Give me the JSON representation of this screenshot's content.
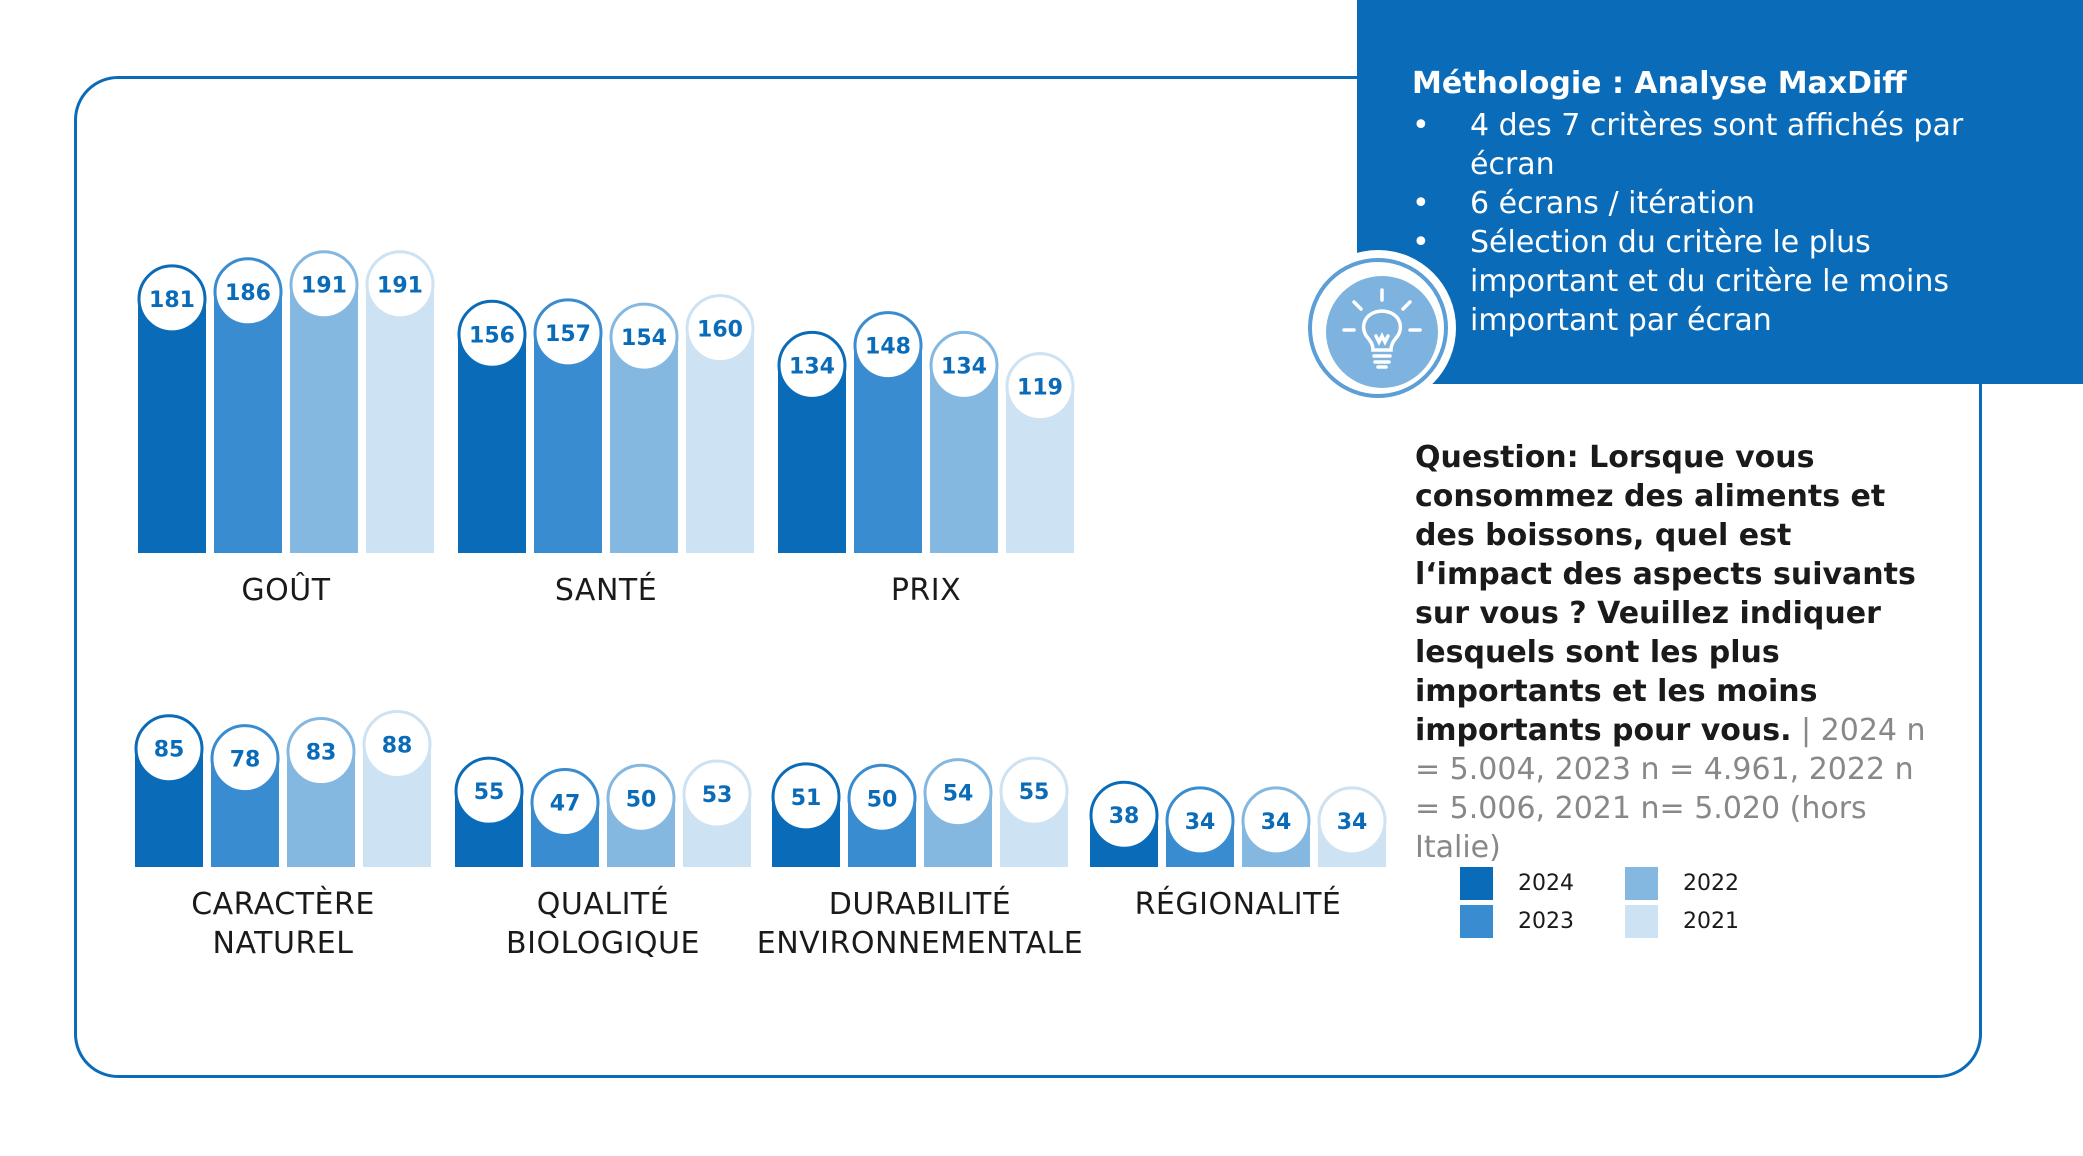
{
  "chart_data": {
    "type": "bar",
    "categories": [
      "GOÛT",
      "SANTÉ",
      "PRIX",
      "CARACTÈRE\nNATUREL",
      "QUALITÉ\nBIOLOGIQUE",
      "DURABILITÉ\nENVIRONNEMENTALE",
      "RÉGIONALITÉ"
    ],
    "series": [
      {
        "name": "2024",
        "values": [
          181,
          156,
          134,
          85,
          55,
          51,
          38
        ]
      },
      {
        "name": "2023",
        "values": [
          186,
          157,
          148,
          78,
          47,
          50,
          34
        ]
      },
      {
        "name": "2022",
        "values": [
          191,
          154,
          134,
          83,
          50,
          54,
          34
        ]
      },
      {
        "name": "2021",
        "values": [
          191,
          160,
          119,
          88,
          53,
          55,
          34
        ]
      }
    ],
    "colors": {
      "2024": "#0a6bb8",
      "2023": "#3a8cd0",
      "2022": "#85b8e1",
      "2021": "#cde2f2"
    },
    "value_text_color": "#0a6bb8",
    "legend_position": "right",
    "grid": false
  },
  "methodology": {
    "title": "Méthologie : Analyse MaxDiff",
    "items": [
      "4 des 7 critères sont affichés par écran",
      "6 écrans / itération",
      "Sélection du critère le plus important et du critère le moins important par écran"
    ],
    "icon": "lightbulb-icon"
  },
  "question": {
    "text": "Question: Lorsque vous consommez des aliments et des boissons, quel est l‘impact des aspects suivants sur vous ? Veuillez indiquer lesquels sont les plus importants et les moins importants pour vous.",
    "note": " | 2024 n = 5.004, 2023 n = 4.961, 2022 n = 5.006, 2021 n= 5.020 (hors Italie)"
  },
  "legend": {
    "items": [
      {
        "label": "2024",
        "color": "#0a6bb8"
      },
      {
        "label": "2023",
        "color": "#3a8cd0"
      },
      {
        "label": "2022",
        "color": "#85b8e1"
      },
      {
        "label": "2021",
        "color": "#cde2f2"
      }
    ]
  }
}
